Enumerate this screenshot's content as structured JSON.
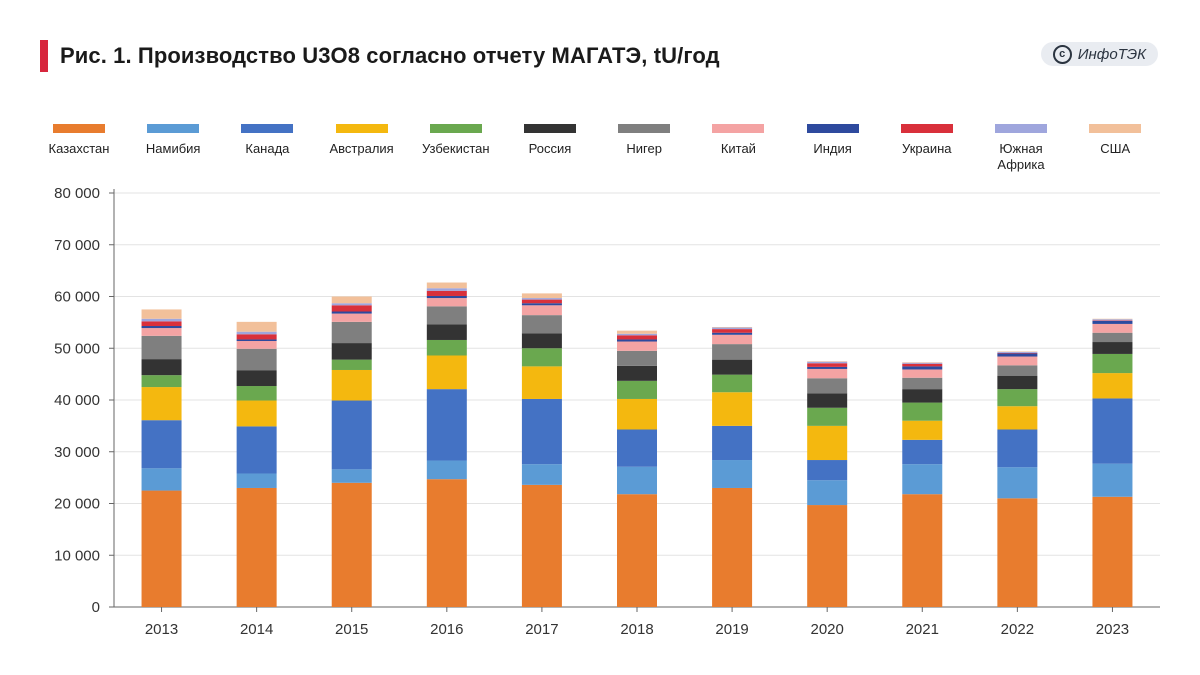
{
  "header": {
    "title": "Рис. 1. Производство U3O8 согласно отчету МАГАТЭ, tU/год",
    "logo_text": "ИнфоТЭК",
    "logo_symbol": "c"
  },
  "chart_data": {
    "type": "bar",
    "stacked": true,
    "title": "Рис. 1. Производство U3O8 согласно отчету МАГАТЭ, tU/год",
    "xlabel": "",
    "ylabel": "",
    "ylim": [
      0,
      80000
    ],
    "yticks": [
      0,
      10000,
      20000,
      30000,
      40000,
      50000,
      60000,
      70000,
      80000
    ],
    "ytick_labels": [
      "0",
      "10 000",
      "20 000",
      "30 000",
      "40 000",
      "50 000",
      "60 000",
      "70 000",
      "80 000"
    ],
    "grid": true,
    "legend_position": "top",
    "categories": [
      "2013",
      "2014",
      "2015",
      "2016",
      "2017",
      "2018",
      "2019",
      "2020",
      "2021",
      "2022",
      "2023"
    ],
    "series": [
      {
        "name": "Казахстан",
        "color": "#e87c2e",
        "values": [
          22500,
          23000,
          24000,
          24700,
          23600,
          21800,
          23000,
          19700,
          21800,
          21000,
          21300
        ]
      },
      {
        "name": "Намибия",
        "color": "#5b9bd5",
        "values": [
          4300,
          2800,
          2600,
          3600,
          4000,
          5300,
          5400,
          4800,
          5800,
          6000,
          6400
        ]
      },
      {
        "name": "Канада",
        "color": "#4472c4",
        "values": [
          9300,
          9100,
          13300,
          13800,
          12600,
          7200,
          6600,
          3900,
          4700,
          7300,
          12600
        ]
      },
      {
        "name": "Австралия",
        "color": "#f4b80f",
        "values": [
          6400,
          5000,
          5900,
          6500,
          6300,
          5900,
          6500,
          6600,
          3700,
          4500,
          4900
        ]
      },
      {
        "name": "Узбекистан",
        "color": "#6aa84f",
        "values": [
          2300,
          2800,
          2000,
          3000,
          3500,
          3500,
          3400,
          3500,
          3500,
          3300,
          3700
        ]
      },
      {
        "name": "Россия",
        "color": "#333333",
        "values": [
          3100,
          3000,
          3200,
          3000,
          2900,
          2900,
          2900,
          2800,
          2600,
          2600,
          2300
        ]
      },
      {
        "name": "Нигер",
        "color": "#7f7f7f",
        "values": [
          4500,
          4200,
          4100,
          3500,
          3500,
          2900,
          3000,
          2900,
          2200,
          2000,
          1800
        ]
      },
      {
        "name": "Китай",
        "color": "#f4a3a3",
        "values": [
          1500,
          1500,
          1600,
          1600,
          1900,
          1800,
          1800,
          1800,
          1600,
          1700,
          1700
        ]
      },
      {
        "name": "Индия",
        "color": "#2e4a9e",
        "values": [
          400,
          300,
          400,
          400,
          400,
          400,
          400,
          400,
          600,
          600,
          600
        ]
      },
      {
        "name": "Украина",
        "color": "#d9303b",
        "values": [
          900,
          1000,
          1200,
          1000,
          700,
          800,
          700,
          700,
          500,
          100,
          100
        ]
      },
      {
        "name": "Южная Африка",
        "color": "#9fa6dd",
        "values": [
          500,
          500,
          400,
          500,
          300,
          300,
          300,
          300,
          200,
          200,
          200
        ]
      },
      {
        "name": "США",
        "color": "#f2c09a",
        "values": [
          1800,
          1900,
          1300,
          1100,
          900,
          600,
          100,
          100,
          100,
          100,
          100
        ]
      }
    ]
  }
}
